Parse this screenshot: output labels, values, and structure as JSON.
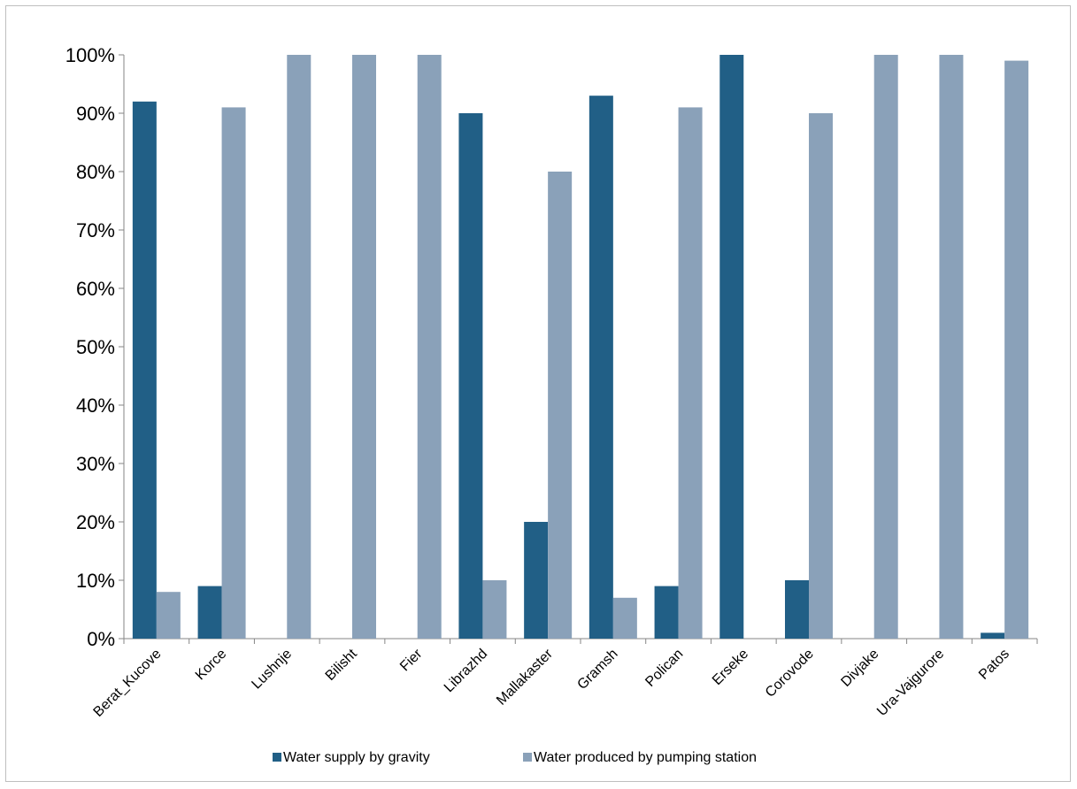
{
  "chart_data": {
    "type": "bar",
    "title": "",
    "xlabel": "",
    "ylabel": "",
    "ylim": [
      0,
      100
    ],
    "y_ticks": [
      "0%",
      "10%",
      "20%",
      "30%",
      "40%",
      "50%",
      "60%",
      "70%",
      "80%",
      "90%",
      "100%"
    ],
    "categories": [
      "Berat_Kucove",
      "Korce",
      "Lushnje",
      "Bilisht",
      "Fier",
      "Librazhd",
      "Mallakaster",
      "Gramsh",
      "Polican",
      "Erseke",
      "Corovode",
      "Divjake",
      "Ura-Vajgurore",
      "Patos"
    ],
    "series": [
      {
        "name": "Water supply by gravity",
        "color": "#215f86",
        "values": [
          92,
          9,
          0,
          0,
          0,
          90,
          20,
          93,
          9,
          100,
          10,
          0,
          0,
          1
        ]
      },
      {
        "name": "Water produced by pumping station",
        "color": "#8aa1b9",
        "values": [
          8,
          91,
          100,
          100,
          100,
          10,
          80,
          7,
          91,
          0,
          90,
          100,
          100,
          99
        ]
      }
    ],
    "grid": false,
    "legend_position": "bottom"
  }
}
